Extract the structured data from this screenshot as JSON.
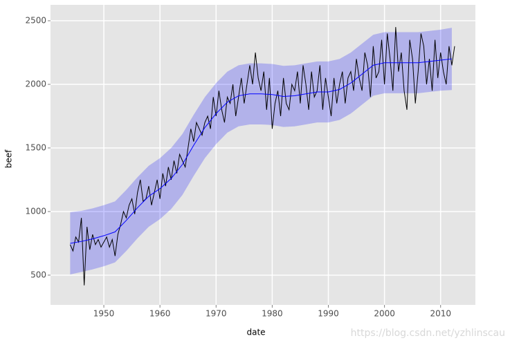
{
  "chart_data": {
    "type": "line",
    "x_label": "date",
    "y_label": "beef",
    "watermark": "https://blog.csdn.net/yzhlinscau",
    "xlim": [
      1940.5,
      2016.2
    ],
    "ylim": [
      266,
      2625
    ],
    "xticks": [
      1950,
      1960,
      1970,
      1980,
      1990,
      2000,
      2010
    ],
    "yticks": [
      500,
      1000,
      1500,
      2000,
      2500
    ],
    "grid": true,
    "background": "#e5e5e5",
    "series": [
      {
        "name": "beef",
        "color": "#000000",
        "x": [
          1944,
          1944.5,
          1945,
          1945.5,
          1946,
          1946.5,
          1947,
          1947.5,
          1948,
          1948.5,
          1949,
          1949.5,
          1950,
          1950.5,
          1951,
          1951.5,
          1952,
          1952.5,
          1953,
          1953.5,
          1954,
          1954.5,
          1955,
          1955.5,
          1956,
          1956.5,
          1957,
          1957.5,
          1958,
          1958.5,
          1959,
          1959.5,
          1960,
          1960.5,
          1961,
          1961.5,
          1962,
          1962.5,
          1963,
          1963.5,
          1964,
          1964.5,
          1965,
          1965.5,
          1966,
          1966.5,
          1967,
          1967.5,
          1968,
          1968.5,
          1969,
          1969.5,
          1970,
          1970.5,
          1971,
          1971.5,
          1972,
          1972.5,
          1973,
          1973.5,
          1974,
          1974.5,
          1975,
          1975.5,
          1976,
          1976.5,
          1977,
          1977.5,
          1978,
          1978.5,
          1979,
          1979.5,
          1980,
          1980.5,
          1981,
          1981.5,
          1982,
          1982.5,
          1983,
          1983.5,
          1984,
          1984.5,
          1985,
          1985.5,
          1986,
          1986.5,
          1987,
          1987.5,
          1988,
          1988.5,
          1989,
          1989.5,
          1990,
          1990.5,
          1991,
          1991.5,
          1992,
          1992.5,
          1993,
          1993.5,
          1994,
          1994.5,
          1995,
          1995.5,
          1996,
          1996.5,
          1997,
          1997.5,
          1998,
          1998.5,
          1999,
          1999.5,
          2000,
          2000.5,
          2001,
          2001.5,
          2002,
          2002.5,
          2003,
          2003.5,
          2004,
          2004.5,
          2005,
          2005.5,
          2006,
          2006.5,
          2007,
          2007.5,
          2008,
          2008.5,
          2009,
          2009.5,
          2010,
          2010.5,
          2011,
          2011.5,
          2012,
          2012.5
        ],
        "values": [
          740,
          690,
          800,
          760,
          950,
          420,
          880,
          700,
          820,
          740,
          780,
          720,
          760,
          800,
          720,
          780,
          650,
          820,
          900,
          1000,
          950,
          1050,
          1100,
          980,
          1150,
          1250,
          1080,
          1100,
          1200,
          1050,
          1150,
          1250,
          1100,
          1300,
          1200,
          1350,
          1250,
          1400,
          1300,
          1450,
          1400,
          1350,
          1500,
          1650,
          1550,
          1700,
          1650,
          1600,
          1700,
          1750,
          1650,
          1900,
          1750,
          1950,
          1800,
          1700,
          1900,
          1850,
          2000,
          1750,
          1900,
          2050,
          1850,
          2000,
          2150,
          2000,
          2250,
          2050,
          1950,
          2100,
          1800,
          2050,
          1650,
          1850,
          1950,
          1750,
          2050,
          1850,
          1800,
          2000,
          1950,
          2100,
          1850,
          2150,
          2000,
          1800,
          2100,
          1900,
          1950,
          2150,
          1800,
          2050,
          1900,
          1750,
          2050,
          1850,
          2000,
          2100,
          1850,
          2050,
          2100,
          1950,
          2200,
          2050,
          1950,
          2250,
          2150,
          1900,
          2300,
          2050,
          2100,
          2350,
          2000,
          2400,
          2200,
          1950,
          2450,
          2100,
          2250,
          1950,
          1800,
          2350,
          2200,
          1850,
          2100,
          2400,
          2300,
          2000,
          2200,
          1950,
          2350,
          2050,
          2250,
          2100,
          2000,
          2300,
          2150,
          2300
        ]
      },
      {
        "name": "smooth",
        "color": "#0000ff",
        "x": [
          1944,
          1946,
          1948,
          1950,
          1952,
          1954,
          1956,
          1958,
          1960,
          1962,
          1964,
          1966,
          1968,
          1970,
          1972,
          1974,
          1976,
          1978,
          1980,
          1982,
          1984,
          1986,
          1988,
          1990,
          1992,
          1994,
          1996,
          1998,
          2000,
          2002,
          2004,
          2006,
          2008,
          2010,
          2012
        ],
        "values": [
          750,
          765,
          785,
          810,
          840,
          930,
          1030,
          1120,
          1180,
          1260,
          1370,
          1520,
          1660,
          1770,
          1860,
          1910,
          1925,
          1925,
          1920,
          1905,
          1910,
          1925,
          1940,
          1940,
          1960,
          2010,
          2080,
          2150,
          2170,
          2170,
          2170,
          2170,
          2180,
          2190,
          2200
        ],
        "lower": [
          505,
          525,
          545,
          570,
          600,
          690,
          790,
          880,
          940,
          1020,
          1130,
          1280,
          1420,
          1530,
          1620,
          1670,
          1685,
          1685,
          1680,
          1665,
          1670,
          1685,
          1700,
          1700,
          1720,
          1770,
          1840,
          1910,
          1930,
          1930,
          1930,
          1930,
          1940,
          1950,
          1955
        ],
        "upper": [
          995,
          1005,
          1025,
          1050,
          1080,
          1170,
          1270,
          1360,
          1420,
          1500,
          1610,
          1760,
          1900,
          2010,
          2100,
          2150,
          2165,
          2165,
          2160,
          2145,
          2150,
          2165,
          2180,
          2180,
          2200,
          2250,
          2320,
          2390,
          2410,
          2410,
          2410,
          2410,
          2420,
          2430,
          2445
        ],
        "band_color": "#0000ff"
      }
    ]
  }
}
